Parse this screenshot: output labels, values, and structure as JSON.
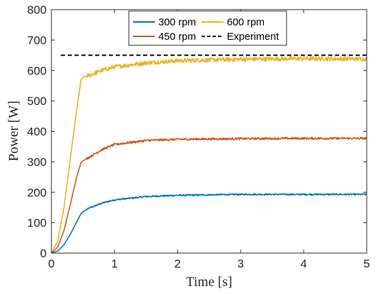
{
  "chart_data": {
    "type": "line",
    "xlabel": "Time [s]",
    "ylabel": "Power [W]",
    "xlim": [
      0,
      5
    ],
    "ylim": [
      0,
      800
    ],
    "xticks": [
      0,
      1,
      2,
      3,
      4,
      5
    ],
    "yticks": [
      0,
      100,
      200,
      300,
      400,
      500,
      600,
      700,
      800
    ],
    "grid": false,
    "legend_position": "top-center",
    "series": [
      {
        "name": "300 rpm",
        "color": "#0072BD",
        "style": "solid",
        "noise": 2.5,
        "x": [
          0,
          0.1,
          0.2,
          0.3,
          0.4,
          0.47,
          0.5,
          0.6,
          0.8,
          1.0,
          1.5,
          2.0,
          3.0,
          4.0,
          5.0
        ],
        "y": [
          0,
          7,
          28,
          62,
          102,
          130,
          136,
          148,
          164,
          175,
          186,
          190,
          193,
          193,
          193
        ]
      },
      {
        "name": "600 rpm",
        "color": "#EDB120",
        "style": "solid",
        "noise": 7,
        "x": [
          0,
          0.1,
          0.2,
          0.3,
          0.4,
          0.47,
          0.5,
          0.6,
          0.8,
          1.0,
          1.5,
          2.0,
          3.0,
          4.0,
          5.0
        ],
        "y": [
          0,
          40,
          150,
          310,
          470,
          570,
          578,
          584,
          600,
          612,
          625,
          632,
          637,
          639,
          638
        ]
      },
      {
        "name": "450 rpm",
        "color": "#D95319",
        "style": "solid",
        "noise": 3.5,
        "x": [
          0,
          0.1,
          0.2,
          0.3,
          0.4,
          0.47,
          0.5,
          0.6,
          0.8,
          1.0,
          1.5,
          2.0,
          3.0,
          4.0,
          5.0
        ],
        "y": [
          0,
          20,
          75,
          160,
          250,
          298,
          303,
          315,
          340,
          357,
          370,
          374,
          376,
          377,
          377
        ]
      },
      {
        "name": "Experiment",
        "color": "#000000",
        "style": "dashed",
        "noise": 0,
        "x": [
          0.15,
          5.0
        ],
        "y": [
          650,
          650
        ]
      }
    ]
  }
}
